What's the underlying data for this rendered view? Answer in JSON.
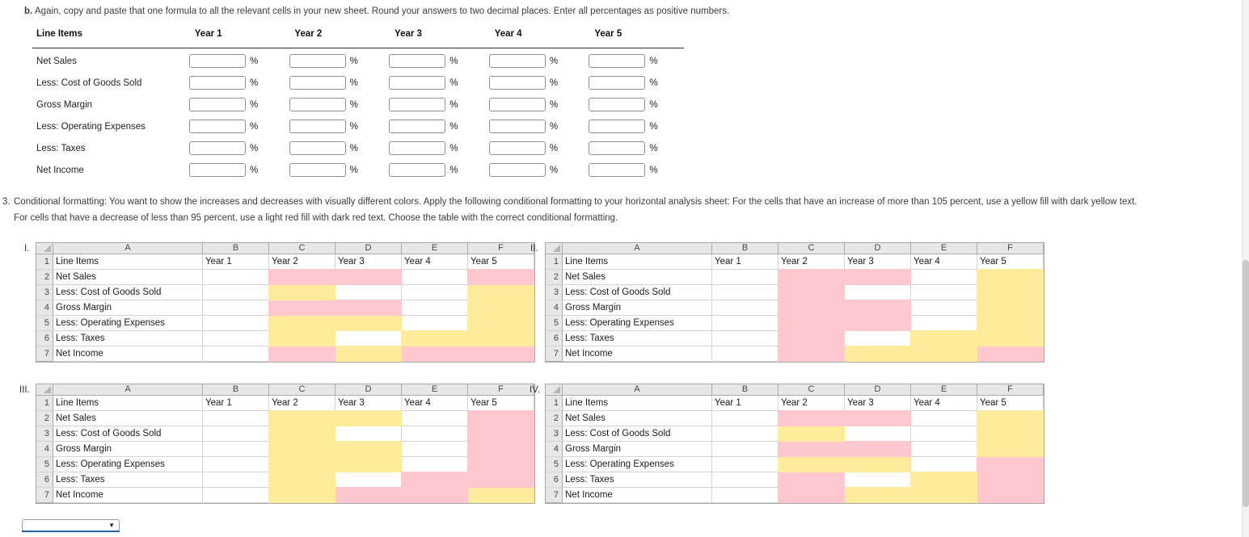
{
  "instruction_b": {
    "prefix": "b.",
    "text": "Again, copy and paste that one formula to all the relevant cells in your new sheet. Round your answers to two decimal places. Enter all percentages as positive numbers."
  },
  "form": {
    "header_label": "Line Items",
    "year_headers": [
      "Year 1",
      "Year 2",
      "Year 3",
      "Year 4",
      "Year 5"
    ],
    "rows": [
      "Net Sales",
      "Less: Cost of Goods Sold",
      "Gross Margin",
      "Less: Operating Expenses",
      "Less: Taxes",
      "Net Income"
    ],
    "input_value": "",
    "percent_suffix": "%"
  },
  "instruction_3": {
    "prefix": "3.",
    "lines": [
      "Conditional formatting: You want to show the increases and decreases with visually different colors. Apply the following conditional formatting to your horizontal analysis sheet: For the cells that have an increase of more than 105 percent, use a yellow fill with dark yellow text.",
      "For cells that have a decrease of less than 95 percent, use a light red fill with dark red text. Choose the table with the correct conditional formatting."
    ]
  },
  "sheets": {
    "column_letters": [
      "A",
      "B",
      "C",
      "D",
      "E",
      "F"
    ],
    "row_numbers": [
      "1",
      "2",
      "3",
      "4",
      "5",
      "6",
      "7"
    ],
    "header_row": [
      "Line Items",
      "Year 1",
      "Year 2",
      "Year 3",
      "Year 4",
      "Year 5"
    ],
    "line_items": [
      "Net Sales",
      "Less: Cost of Goods Sold",
      "Gross Margin",
      "Less: Operating Expenses",
      "Less: Taxes",
      "Net Income"
    ],
    "fill_colors": {
      "pink": "#ffc7ce",
      "yellow": "#ffeb9c"
    },
    "tables": [
      {
        "label": "I.",
        "fills": [
          [
            "",
            "pink",
            "pink",
            "",
            "pink"
          ],
          [
            "",
            "yellow",
            "",
            "",
            "yellow"
          ],
          [
            "",
            "pink",
            "pink",
            "",
            "yellow"
          ],
          [
            "",
            "yellow",
            "yellow",
            "",
            "yellow"
          ],
          [
            "",
            "yellow",
            "",
            "yellow",
            "yellow"
          ],
          [
            "",
            "pink",
            "yellow",
            "pink",
            "pink"
          ]
        ]
      },
      {
        "label": "II.",
        "fills": [
          [
            "",
            "pink",
            "pink",
            "",
            "yellow"
          ],
          [
            "",
            "pink",
            "",
            "",
            "yellow"
          ],
          [
            "",
            "pink",
            "pink",
            "",
            "yellow"
          ],
          [
            "",
            "pink",
            "pink",
            "",
            "yellow"
          ],
          [
            "",
            "pink",
            "",
            "yellow",
            "yellow"
          ],
          [
            "",
            "pink",
            "yellow",
            "yellow",
            "pink"
          ]
        ]
      },
      {
        "label": "III.",
        "fills": [
          [
            "",
            "yellow",
            "yellow",
            "",
            "pink"
          ],
          [
            "",
            "yellow",
            "",
            "",
            "pink"
          ],
          [
            "",
            "yellow",
            "yellow",
            "",
            "pink"
          ],
          [
            "",
            "yellow",
            "yellow",
            "",
            "pink"
          ],
          [
            "",
            "yellow",
            "",
            "pink",
            "pink"
          ],
          [
            "",
            "yellow",
            "pink",
            "pink",
            "yellow"
          ]
        ]
      },
      {
        "label": "IV.",
        "fills": [
          [
            "",
            "pink",
            "pink",
            "",
            "yellow"
          ],
          [
            "",
            "yellow",
            "",
            "",
            "yellow"
          ],
          [
            "",
            "pink",
            "pink",
            "",
            "yellow"
          ],
          [
            "",
            "yellow",
            "yellow",
            "",
            "pink"
          ],
          [
            "",
            "pink",
            "",
            "yellow",
            "pink"
          ],
          [
            "",
            "pink",
            "yellow",
            "yellow",
            "pink"
          ]
        ]
      }
    ]
  },
  "answer_dropdown": {
    "value": "",
    "arrow_icon": "▼"
  }
}
